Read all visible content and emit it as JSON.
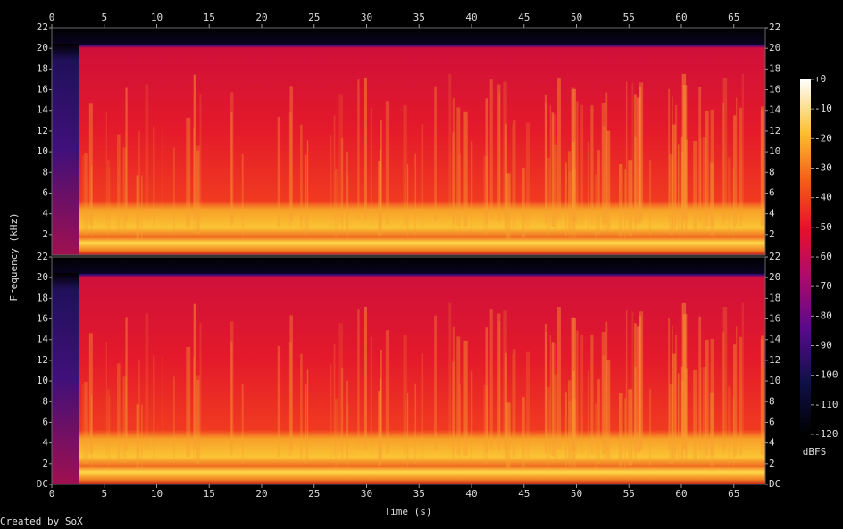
{
  "chart_data": {
    "type": "spectrogram",
    "xlabel": "Time (s)",
    "ylabel": "Frequency (kHz)",
    "footer": "Created by SoX",
    "xlim": [
      0,
      68
    ],
    "xticks": [
      0,
      5,
      10,
      15,
      20,
      25,
      30,
      35,
      40,
      45,
      50,
      55,
      60,
      65
    ],
    "channels": [
      {
        "ylim": [
          0,
          22
        ],
        "yticks": [
          2,
          4,
          6,
          8,
          10,
          12,
          14,
          16,
          18,
          20,
          22
        ]
      },
      {
        "ylim": [
          0,
          22
        ],
        "yticks": [
          {
            "value": 0,
            "label": "DC"
          },
          2,
          4,
          6,
          8,
          10,
          12,
          14,
          16,
          18,
          20,
          22
        ]
      }
    ],
    "colorbar": {
      "label": "dBFS",
      "lim": [
        -120,
        0
      ],
      "ticks": [
        {
          "value": 0,
          "label": "+0"
        },
        -10,
        -20,
        -30,
        -40,
        -50,
        -60,
        -70,
        -80,
        -90,
        -100,
        -110,
        -120
      ]
    }
  }
}
